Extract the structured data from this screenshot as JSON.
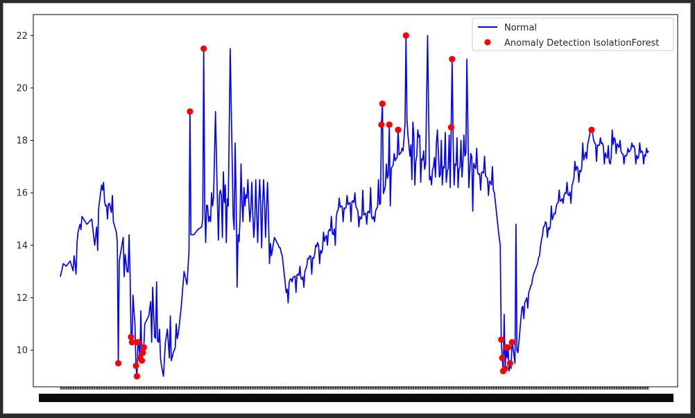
{
  "chart_data": {
    "type": "line",
    "title": "",
    "xlabel": "",
    "ylabel": "",
    "ylim": [
      8.6,
      22.8
    ],
    "yticks": [
      10,
      12,
      14,
      16,
      18,
      20,
      22
    ],
    "ytick_labels": [
      "10",
      "12",
      "14",
      "16",
      "18",
      "20",
      "22"
    ],
    "x_count": 600,
    "x_tick_labels_visible": false,
    "grid": false,
    "legend_position": "top-right",
    "colors": {
      "normal": "#0000ff",
      "anomaly": "#ff0000"
    },
    "anchors": [
      [
        0,
        12.8
      ],
      [
        3,
        13.3
      ],
      [
        6,
        13.2
      ],
      [
        10,
        13.4
      ],
      [
        14,
        12.9
      ],
      [
        18,
        14.5
      ],
      [
        22,
        15.1
      ],
      [
        27,
        14.8
      ],
      [
        32,
        15.0
      ],
      [
        35,
        14.0
      ],
      [
        39,
        15.4
      ],
      [
        42,
        16.3
      ],
      [
        46,
        15.5
      ],
      [
        50,
        15.6
      ],
      [
        54,
        14.9
      ],
      [
        57,
        14.5
      ],
      [
        60,
        13.4
      ],
      [
        64,
        14.3
      ],
      [
        68,
        13.0
      ],
      [
        72,
        12.9
      ],
      [
        76,
        11.0
      ],
      [
        79,
        9.5
      ],
      [
        82,
        11.5
      ],
      [
        86,
        11.0
      ],
      [
        90,
        11.3
      ],
      [
        94,
        12.4
      ],
      [
        96,
        10.5
      ],
      [
        100,
        10.3
      ],
      [
        103,
        9.4
      ],
      [
        105,
        9.0
      ],
      [
        107,
        10.3
      ],
      [
        109,
        10.8
      ],
      [
        111,
        9.7
      ],
      [
        113,
        9.6
      ],
      [
        115,
        9.9
      ],
      [
        117,
        10.1
      ],
      [
        120,
        10.6
      ],
      [
        123,
        11.6
      ],
      [
        126,
        13.0
      ],
      [
        129,
        12.5
      ],
      [
        132,
        14.4
      ],
      [
        136,
        14.4
      ],
      [
        140,
        14.6
      ],
      [
        144,
        14.7
      ],
      [
        147,
        15.6
      ],
      [
        150,
        15.5
      ],
      [
        153,
        14.9
      ],
      [
        156,
        15.8
      ],
      [
        158,
        19.1
      ],
      [
        160,
        15.6
      ],
      [
        163,
        16.1
      ],
      [
        165,
        14.3
      ],
      [
        168,
        16.3
      ],
      [
        171,
        15.5
      ],
      [
        173,
        21.5
      ],
      [
        176,
        15.1
      ],
      [
        178,
        17.9
      ],
      [
        180,
        12.4
      ],
      [
        183,
        15.0
      ],
      [
        187,
        16.2
      ],
      [
        190,
        15.8
      ],
      [
        194,
        15.4
      ],
      [
        198,
        14.9
      ],
      [
        202,
        15.5
      ],
      [
        206,
        15.6
      ],
      [
        210,
        15.5
      ],
      [
        212,
        15.0
      ],
      [
        215,
        13.6
      ],
      [
        218,
        14.3
      ],
      [
        222,
        14.0
      ],
      [
        226,
        13.6
      ],
      [
        230,
        12.2
      ],
      [
        234,
        12.7
      ],
      [
        238,
        12.8
      ],
      [
        242,
        12.9
      ],
      [
        246,
        12.7
      ],
      [
        250,
        13.1
      ],
      [
        254,
        13.6
      ],
      [
        258,
        13.5
      ],
      [
        262,
        14.1
      ],
      [
        266,
        13.7
      ],
      [
        270,
        14.3
      ],
      [
        274,
        14.6
      ],
      [
        278,
        14.4
      ],
      [
        282,
        15.3
      ],
      [
        286,
        15.5
      ],
      [
        290,
        15.4
      ],
      [
        294,
        15.6
      ],
      [
        298,
        15.7
      ],
      [
        302,
        15.4
      ],
      [
        306,
        15.0
      ],
      [
        310,
        15.2
      ],
      [
        314,
        15.3
      ],
      [
        318,
        15.0
      ],
      [
        322,
        15.4
      ],
      [
        326,
        15.6
      ],
      [
        330,
        16.1
      ],
      [
        334,
        16.7
      ],
      [
        338,
        17.0
      ],
      [
        342,
        17.3
      ],
      [
        346,
        17.5
      ],
      [
        349,
        17.6
      ],
      [
        351,
        18.6
      ],
      [
        352,
        19.4
      ],
      [
        354,
        18.2
      ],
      [
        356,
        17.4
      ],
      [
        359,
        18.7
      ],
      [
        362,
        17.2
      ],
      [
        364,
        18.4
      ],
      [
        368,
        17.3
      ],
      [
        372,
        17.1
      ],
      [
        374,
        22.0
      ],
      [
        376,
        16.5
      ],
      [
        380,
        17.0
      ],
      [
        384,
        18.4
      ],
      [
        386,
        16.6
      ],
      [
        390,
        17.0
      ],
      [
        394,
        16.8
      ],
      [
        398,
        17.4
      ],
      [
        402,
        17.1
      ],
      [
        406,
        16.9
      ],
      [
        410,
        17.2
      ],
      [
        413,
        17.5
      ],
      [
        414,
        21.1
      ],
      [
        416,
        16.2
      ],
      [
        418,
        17.5
      ],
      [
        422,
        17.0
      ],
      [
        426,
        16.7
      ],
      [
        430,
        16.8
      ],
      [
        434,
        16.6
      ],
      [
        438,
        16.4
      ],
      [
        442,
        16.0
      ],
      [
        446,
        14.6
      ],
      [
        450,
        13.3
      ],
      [
        453,
        10.4
      ],
      [
        455,
        9.7
      ],
      [
        457,
        9.2
      ],
      [
        459,
        9.3
      ],
      [
        461,
        10.1
      ],
      [
        463,
        9.5
      ],
      [
        465,
        10.0
      ],
      [
        467,
        10.3
      ],
      [
        470,
        11.6
      ],
      [
        474,
        11.9
      ],
      [
        478,
        12.3
      ],
      [
        482,
        12.9
      ],
      [
        486,
        13.3
      ],
      [
        490,
        14.2
      ],
      [
        494,
        14.9
      ],
      [
        498,
        14.6
      ],
      [
        502,
        15.1
      ],
      [
        506,
        15.6
      ],
      [
        510,
        15.7
      ],
      [
        514,
        16.0
      ],
      [
        518,
        15.9
      ],
      [
        522,
        16.4
      ],
      [
        526,
        17.0
      ],
      [
        530,
        16.8
      ],
      [
        534,
        17.4
      ],
      [
        538,
        18.0
      ],
      [
        540,
        18.4
      ],
      [
        544,
        17.9
      ],
      [
        548,
        17.8
      ],
      [
        552,
        17.9
      ],
      [
        556,
        17.4
      ],
      [
        560,
        17.1
      ],
      [
        564,
        18.1
      ],
      [
        568,
        17.8
      ],
      [
        572,
        17.5
      ],
      [
        576,
        17.4
      ],
      [
        580,
        17.6
      ],
      [
        584,
        17.8
      ],
      [
        588,
        17.3
      ],
      [
        592,
        17.6
      ],
      [
        596,
        17.4
      ],
      [
        599,
        17.6
      ]
    ],
    "spikes": [
      [
        14,
        13.6
      ],
      [
        16,
        12.9
      ],
      [
        21,
        14.6
      ],
      [
        38,
        13.8
      ],
      [
        44,
        16.4
      ],
      [
        48,
        15.0
      ],
      [
        53,
        15.9
      ],
      [
        65,
        12.8
      ],
      [
        70,
        14.4
      ],
      [
        74,
        12.1
      ],
      [
        84,
        11.8
      ],
      [
        93,
        10.3
      ],
      [
        98,
        12.6
      ],
      [
        101,
        10.8
      ],
      [
        112,
        11.3
      ],
      [
        118,
        11.0
      ],
      [
        121,
        10.9
      ],
      [
        148,
        14.1
      ],
      [
        151,
        14.9
      ],
      [
        154,
        16.0
      ],
      [
        161,
        14.2
      ],
      [
        164,
        15.9
      ],
      [
        166,
        16.8
      ],
      [
        169,
        14.1
      ],
      [
        177,
        14.6
      ],
      [
        179,
        15.9
      ],
      [
        181,
        14.4
      ],
      [
        184,
        17.1
      ],
      [
        186,
        14.9
      ],
      [
        188,
        15.5
      ],
      [
        191,
        16.5
      ],
      [
        193,
        14.9
      ],
      [
        195,
        16.4
      ],
      [
        197,
        14.3
      ],
      [
        199,
        16.5
      ],
      [
        201,
        14.1
      ],
      [
        203,
        16.5
      ],
      [
        205,
        13.9
      ],
      [
        207,
        16.5
      ],
      [
        209,
        14.3
      ],
      [
        211,
        16.4
      ],
      [
        213,
        13.3
      ],
      [
        224,
        13.9
      ],
      [
        232,
        11.8
      ],
      [
        236,
        12.6
      ],
      [
        240,
        12.2
      ],
      [
        244,
        13.2
      ],
      [
        248,
        12.4
      ],
      [
        252,
        13.5
      ],
      [
        256,
        12.9
      ],
      [
        260,
        14.0
      ],
      [
        264,
        13.3
      ],
      [
        268,
        14.5
      ],
      [
        272,
        14.0
      ],
      [
        276,
        15.1
      ],
      [
        280,
        14.0
      ],
      [
        284,
        15.8
      ],
      [
        288,
        14.9
      ],
      [
        292,
        15.9
      ],
      [
        296,
        14.9
      ],
      [
        300,
        16.0
      ],
      [
        304,
        14.7
      ],
      [
        308,
        16.1
      ],
      [
        312,
        14.8
      ],
      [
        316,
        16.2
      ],
      [
        320,
        14.9
      ],
      [
        324,
        16.5
      ],
      [
        328,
        14.8
      ],
      [
        332,
        17.1
      ],
      [
        336,
        15.5
      ],
      [
        340,
        17.5
      ],
      [
        344,
        16.2
      ],
      [
        348,
        17.7
      ],
      [
        358,
        16.5
      ],
      [
        361,
        16.3
      ],
      [
        363,
        17.4
      ],
      [
        366,
        18.2
      ],
      [
        367,
        16.4
      ],
      [
        370,
        17.6
      ],
      [
        371,
        16.9
      ],
      [
        378,
        16.3
      ],
      [
        382,
        16.6
      ],
      [
        383,
        17.9
      ],
      [
        388,
        18.0
      ],
      [
        389,
        16.3
      ],
      [
        392,
        18.3
      ],
      [
        393,
        16.4
      ],
      [
        396,
        18.2
      ],
      [
        397,
        16.2
      ],
      [
        400,
        18.0
      ],
      [
        401,
        16.3
      ],
      [
        404,
        18.1
      ],
      [
        405,
        16.2
      ],
      [
        408,
        18.0
      ],
      [
        409,
        16.6
      ],
      [
        411,
        18.2
      ],
      [
        420,
        15.3
      ],
      [
        424,
        17.7
      ],
      [
        428,
        16.1
      ],
      [
        432,
        17.4
      ],
      [
        436,
        15.9
      ],
      [
        440,
        17.0
      ],
      [
        448,
        14.0
      ],
      [
        451,
        13.0
      ],
      [
        458,
        10.1
      ],
      [
        464,
        14.8
      ],
      [
        466,
        9.9
      ],
      [
        472,
        11.2
      ],
      [
        476,
        11.6
      ],
      [
        480,
        12.5
      ],
      [
        484,
        13.1
      ],
      [
        488,
        13.6
      ],
      [
        492,
        14.7
      ],
      [
        496,
        14.3
      ],
      [
        500,
        15.5
      ],
      [
        504,
        15.2
      ],
      [
        508,
        16.1
      ],
      [
        512,
        15.6
      ],
      [
        516,
        16.4
      ],
      [
        520,
        15.6
      ],
      [
        524,
        17.2
      ],
      [
        528,
        16.4
      ],
      [
        532,
        17.9
      ],
      [
        536,
        17.3
      ],
      [
        542,
        18.3
      ],
      [
        546,
        17.2
      ],
      [
        550,
        18.1
      ],
      [
        554,
        17.1
      ],
      [
        558,
        17.8
      ],
      [
        562,
        18.4
      ],
      [
        566,
        17.5
      ],
      [
        570,
        18.0
      ],
      [
        574,
        17.1
      ],
      [
        578,
        17.7
      ],
      [
        582,
        17.9
      ],
      [
        586,
        17.1
      ],
      [
        590,
        17.9
      ],
      [
        594,
        17.1
      ],
      [
        597,
        17.7
      ]
    ],
    "series": [
      {
        "name": "Normal",
        "kind": "line",
        "color": "#0000ff"
      },
      {
        "name": "Anomaly Detection IsolationForest",
        "kind": "scatter",
        "color": "#ff0000",
        "points": [
          [
            59,
            9.5
          ],
          [
            72,
            10.5
          ],
          [
            73,
            10.3
          ],
          [
            77,
            9.4
          ],
          [
            78,
            9.0
          ],
          [
            79,
            10.3
          ],
          [
            81,
            9.7
          ],
          [
            83,
            9.6
          ],
          [
            84,
            9.9
          ],
          [
            85,
            10.1
          ],
          [
            132,
            19.1
          ],
          [
            146,
            21.5
          ],
          [
            327,
            18.6
          ],
          [
            328,
            19.4
          ],
          [
            335,
            18.6
          ],
          [
            344,
            18.4
          ],
          [
            352,
            22.0
          ],
          [
            398,
            18.5
          ],
          [
            399,
            21.1
          ],
          [
            449,
            10.4
          ],
          [
            450,
            9.7
          ],
          [
            451,
            9.2
          ],
          [
            453,
            9.3
          ],
          [
            454,
            10.1
          ],
          [
            456,
            10.1
          ],
          [
            458,
            9.5
          ],
          [
            460,
            10.3
          ],
          [
            541,
            18.4
          ]
        ]
      }
    ],
    "legend": {
      "entries": [
        "Normal",
        "Anomaly Detection IsolationForest"
      ]
    }
  }
}
